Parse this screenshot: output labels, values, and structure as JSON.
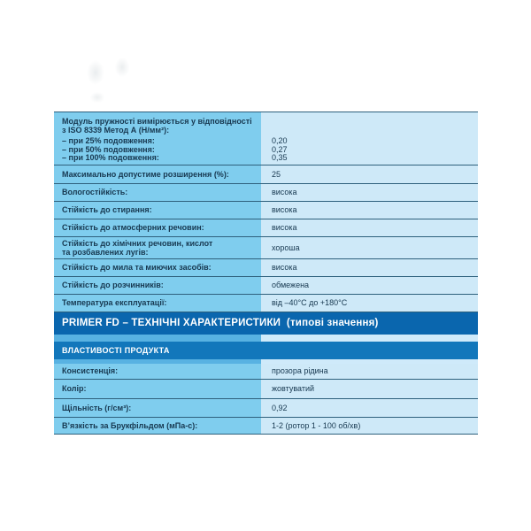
{
  "colors": {
    "label_col_bg": "#7fcdee",
    "value_col_bg": "#cee9f8",
    "divider": "#2e607c",
    "band_primary_bg": "#0a66ae",
    "band_secondary_bg": "#1277bb",
    "spacer_left_bg": "#58b2e2",
    "spacer_right_bg": "#cfeafa",
    "text": "#173850",
    "band_text": "#ffffff"
  },
  "table": {
    "modulus_row": {
      "heading": "Модуль пружності вимірюється у відповідності\nз ISO 8339 Метод А (Н/мм²):",
      "items": [
        {
          "label": "– при 25% подовження:",
          "value": "0,20"
        },
        {
          "label": "– при 50% подовження:",
          "value": "0,27"
        },
        {
          "label": "– при 100% подовження:",
          "value": "0,35"
        }
      ]
    },
    "top_rows": [
      {
        "label": "Максимально допустиме розширення (%):",
        "value": "25"
      },
      {
        "label": "Вологостійкість:",
        "value": "висока"
      },
      {
        "label": "Стійкість до стирання:",
        "value": "висока"
      },
      {
        "label": "Стійкість до атмосферних речовин:",
        "value": "висока"
      },
      {
        "label": "Стійкість до хімічних речовин, кислот\nта розбавлених лугів:",
        "value": "хороша"
      },
      {
        "label": "Стійкість до мила та миючих засобів:",
        "value": "висока"
      },
      {
        "label": "Стійкість до розчинників:",
        "value": "обмежена"
      },
      {
        "label": "Температура експлуатації:",
        "value": "від –40°C до +180°C"
      }
    ],
    "section_header": "PRIMER FD – ТЕХНІЧНІ ХАРАКТЕРИСТИКИ  (типові значення)",
    "subsection_header": "ВЛАСТИВОСТІ ПРОДУКТА",
    "bottom_rows": [
      {
        "label": "Консистенція:",
        "value": "прозора рідина"
      },
      {
        "label": "Колір:",
        "value": "жовтуватий"
      },
      {
        "label": "Щільність (г/см³):",
        "value": "0,92"
      },
      {
        "label": "В’язкість за Брукфільдом (мПа-с):",
        "value": "1-2 (ротор 1 - 100 об/хв)"
      }
    ]
  }
}
